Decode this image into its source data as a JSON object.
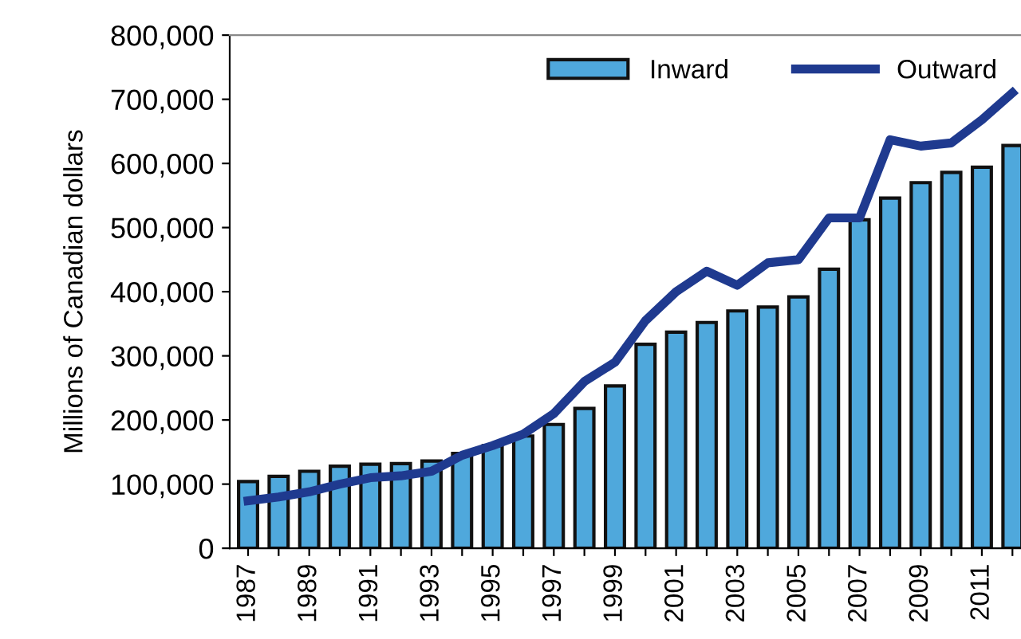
{
  "chart_data": {
    "type": "bar",
    "ylabel": "Millions of Canadian dollars",
    "categories": [
      "1987",
      null,
      "1989",
      null,
      "1991",
      null,
      "1993",
      null,
      "1995",
      null,
      "1997",
      null,
      "1999",
      null,
      "2001",
      null,
      "2003",
      null,
      "2005",
      null,
      "2007",
      null,
      "2009",
      null,
      "2011",
      null
    ],
    "series": [
      {
        "name": "Inward",
        "color": "#4fa8dc",
        "values": [
          104000,
          112000,
          120000,
          128000,
          131000,
          132000,
          136000,
          148000,
          160000,
          175000,
          193000,
          218000,
          253000,
          318000,
          337000,
          352000,
          370000,
          376000,
          392000,
          435000,
          512000,
          546000,
          570000,
          586000,
          594000,
          628000
        ]
      },
      {
        "name": "Outward",
        "type": "line",
        "color": "#1f3a8f",
        "values": [
          74000,
          80000,
          88000,
          100000,
          110000,
          113000,
          120000,
          145000,
          160000,
          178000,
          210000,
          260000,
          290000,
          355000,
          400000,
          432000,
          410000,
          445000,
          450000,
          515000,
          515000,
          637000,
          627000,
          632000,
          668000,
          710000
        ]
      }
    ],
    "ylim": [
      0,
      800000
    ],
    "yticks": [
      {
        "value": 0,
        "label": "0"
      },
      {
        "value": 100000,
        "label": "100,000"
      },
      {
        "value": 200000,
        "label": "200,000"
      },
      {
        "value": 300000,
        "label": "300,000"
      },
      {
        "value": 400000,
        "label": "400,000"
      },
      {
        "value": 500000,
        "label": "500,000"
      },
      {
        "value": 600000,
        "label": "600,000"
      },
      {
        "value": 700000,
        "label": "700,000"
      },
      {
        "value": 800000,
        "label": "800,000"
      }
    ],
    "grid": false,
    "legend": "top right",
    "marker": "none",
    "line_style": "solid"
  }
}
